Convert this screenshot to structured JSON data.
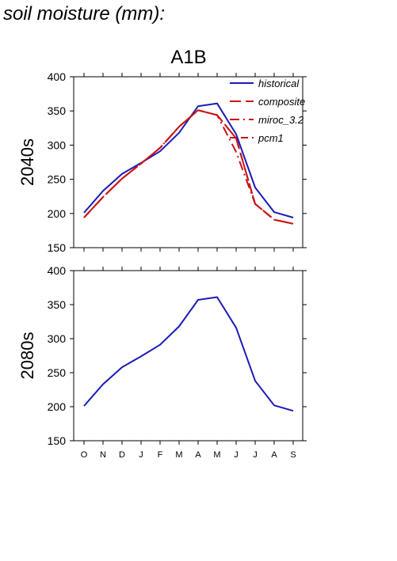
{
  "page": {
    "title": "soil moisture (mm):"
  },
  "chart_data": {
    "type": "line",
    "title": "A1B",
    "categories": [
      "O",
      "N",
      "D",
      "J",
      "F",
      "M",
      "A",
      "M",
      "J",
      "J",
      "A",
      "S"
    ],
    "ylim": [
      150,
      400
    ],
    "yticks": [
      150,
      200,
      250,
      300,
      350,
      400
    ],
    "legend_position": "top-right",
    "panels": [
      {
        "ylabel": "2040s",
        "series": [
          {
            "name": "historical",
            "color": "#1a1ab8",
            "dash": "solid",
            "values": [
              201,
              233,
              258,
              274,
              291,
              318,
              357,
              361,
              316,
              238,
              202,
              194
            ]
          },
          {
            "name": "composite",
            "color": "#c81414",
            "dash": "dashed",
            "values": [
              194,
              224,
              251,
              273,
              296,
              327,
              351,
              344,
              310,
              214,
              191,
              185
            ]
          },
          {
            "name": "miroc_3.2",
            "color": "#c81414",
            "dash": "dashdot",
            "values": [
              194,
              224,
              251,
              273,
              296,
              327,
              351,
              344,
              290,
              214,
              191,
              185
            ]
          },
          {
            "name": "pcm1",
            "color": "#c81414",
            "dash": "dashed2",
            "values": [
              194,
              224,
              251,
              273,
              296,
              327,
              351,
              344,
              310,
              214,
              191,
              185
            ]
          }
        ]
      },
      {
        "ylabel": "2080s",
        "series": [
          {
            "name": "historical",
            "color": "#1a1ab8",
            "dash": "solid",
            "values": [
              201,
              233,
              258,
              274,
              291,
              318,
              357,
              361,
              316,
              238,
              202,
              194
            ]
          }
        ]
      }
    ]
  }
}
